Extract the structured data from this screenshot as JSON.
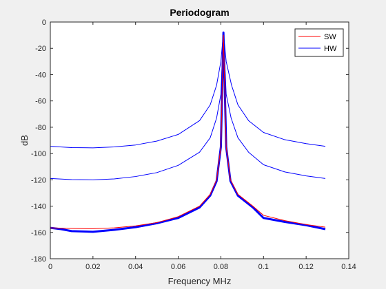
{
  "chart_data": {
    "type": "line",
    "title": "Periodogram",
    "xlabel": "Frequency MHz",
    "ylabel": "dB",
    "xlim": [
      0,
      0.14
    ],
    "ylim": [
      -180,
      0
    ],
    "xticks": [
      0,
      0.02,
      0.04,
      0.06,
      0.08,
      0.1,
      0.12,
      0.14
    ],
    "xtick_labels": [
      "0",
      "0.02",
      "0.04",
      "0.06",
      "0.08",
      "0.1",
      "0.12",
      "0.14"
    ],
    "yticks": [
      0,
      -20,
      -40,
      -60,
      -80,
      -100,
      -120,
      -140,
      -160,
      -180
    ],
    "ytick_labels": [
      "0",
      "-20",
      "-40",
      "-60",
      "-80",
      "-100",
      "-120",
      "-140",
      "-160",
      "-180"
    ],
    "grid": false,
    "legend_position": "top-right",
    "series": [
      {
        "name": "SW",
        "color": "#ff0000",
        "points": [
          [
            0,
            -156.5
          ],
          [
            0.01,
            -157
          ],
          [
            0.02,
            -157.2
          ],
          [
            0.03,
            -156.5
          ],
          [
            0.04,
            -155
          ],
          [
            0.05,
            -152.5
          ],
          [
            0.06,
            -148
          ],
          [
            0.07,
            -140
          ],
          [
            0.075,
            -131
          ],
          [
            0.078,
            -120
          ],
          [
            0.08,
            -95
          ],
          [
            0.0812,
            -10
          ],
          [
            0.0825,
            -95
          ],
          [
            0.0845,
            -120
          ],
          [
            0.088,
            -131
          ],
          [
            0.095,
            -140
          ],
          [
            0.1,
            -147
          ],
          [
            0.11,
            -151
          ],
          [
            0.12,
            -154
          ],
          [
            0.129,
            -156
          ]
        ]
      },
      {
        "name": "HW",
        "color": "#0000ff",
        "points": [
          [
            0,
            -156.5
          ],
          [
            0.005,
            -157.5
          ],
          [
            0.01,
            -159
          ],
          [
            0.02,
            -159.5
          ],
          [
            0.03,
            -158
          ],
          [
            0.04,
            -156
          ],
          [
            0.05,
            -153
          ],
          [
            0.06,
            -149
          ],
          [
            0.07,
            -141
          ],
          [
            0.075,
            -132
          ],
          [
            0.078,
            -121
          ],
          [
            0.08,
            -95
          ],
          [
            0.0812,
            -8
          ],
          [
            0.0825,
            -95
          ],
          [
            0.0845,
            -121
          ],
          [
            0.088,
            -132
          ],
          [
            0.095,
            -141
          ],
          [
            0.1,
            -149
          ],
          [
            0.11,
            -152
          ],
          [
            0.12,
            -154.5
          ],
          [
            0.129,
            -157.5
          ]
        ]
      },
      {
        "color": "#0000ff",
        "points": [
          [
            0,
            -94.5
          ],
          [
            0.01,
            -95.5
          ],
          [
            0.02,
            -95.7
          ],
          [
            0.03,
            -95
          ],
          [
            0.04,
            -93.5
          ],
          [
            0.05,
            -90.5
          ],
          [
            0.06,
            -85.5
          ],
          [
            0.07,
            -75
          ],
          [
            0.075,
            -63
          ],
          [
            0.078,
            -48
          ],
          [
            0.08,
            -30
          ],
          [
            0.0812,
            -8
          ],
          [
            0.0825,
            -30
          ],
          [
            0.085,
            -48
          ],
          [
            0.088,
            -63
          ],
          [
            0.093,
            -75
          ],
          [
            0.1,
            -84
          ],
          [
            0.11,
            -89.5
          ],
          [
            0.12,
            -92.5
          ],
          [
            0.129,
            -94.5
          ]
        ]
      },
      {
        "color": "#0000ff",
        "points": [
          [
            0,
            -119
          ],
          [
            0.01,
            -119.8
          ],
          [
            0.02,
            -120
          ],
          [
            0.03,
            -119.3
          ],
          [
            0.04,
            -117.5
          ],
          [
            0.05,
            -114.5
          ],
          [
            0.06,
            -109
          ],
          [
            0.07,
            -99
          ],
          [
            0.075,
            -88
          ],
          [
            0.078,
            -73
          ],
          [
            0.08,
            -55
          ],
          [
            0.0812,
            -8
          ],
          [
            0.0825,
            -55
          ],
          [
            0.0848,
            -73
          ],
          [
            0.088,
            -88
          ],
          [
            0.093,
            -99
          ],
          [
            0.1,
            -108.5
          ],
          [
            0.11,
            -114
          ],
          [
            0.12,
            -117
          ],
          [
            0.129,
            -119
          ]
        ]
      }
    ]
  }
}
